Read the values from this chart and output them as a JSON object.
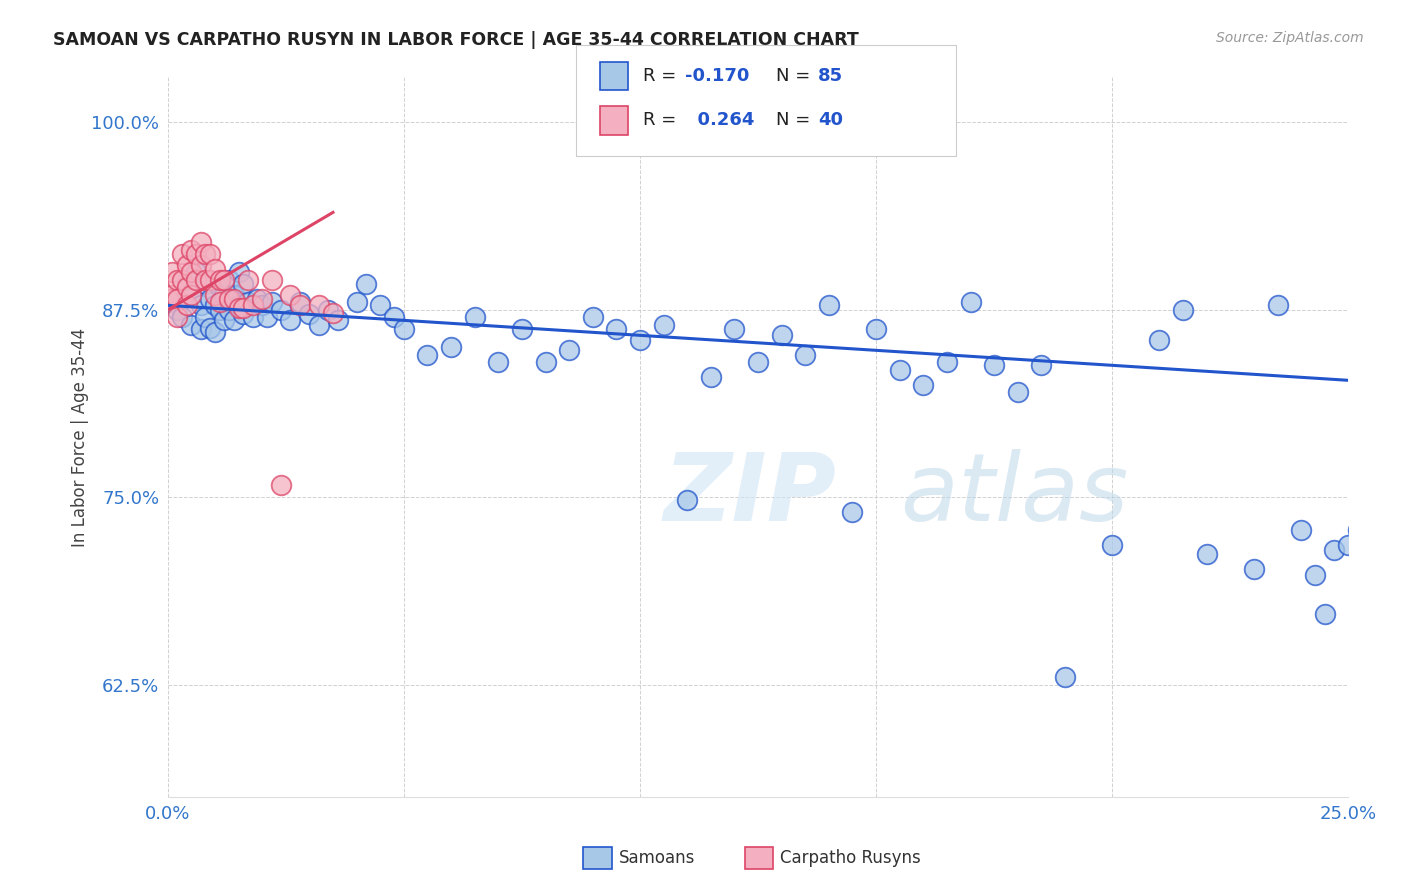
{
  "title": "SAMOAN VS CARPATHO RUSYN IN LABOR FORCE | AGE 35-44 CORRELATION CHART",
  "source": "Source: ZipAtlas.com",
  "ylabel": "In Labor Force | Age 35-44",
  "xlim": [
    0.0,
    0.25
  ],
  "ylim": [
    0.55,
    1.03
  ],
  "yticks": [
    0.625,
    0.75,
    0.875,
    1.0
  ],
  "yticklabels": [
    "62.5%",
    "75.0%",
    "87.5%",
    "100.0%"
  ],
  "xticks": [
    0.0,
    0.05,
    0.1,
    0.15,
    0.2,
    0.25
  ],
  "xticklabels": [
    "0.0%",
    "",
    "",
    "",
    "",
    "25.0%"
  ],
  "blue_R": -0.17,
  "blue_N": 85,
  "pink_R": 0.264,
  "pink_N": 40,
  "blue_color": "#a8c8e8",
  "pink_color": "#f4b0c0",
  "blue_line_color": "#2255cc",
  "pink_line_color": "#dd4466",
  "watermark_zip": "ZIP",
  "watermark_atlas": "atlas",
  "blue_scatter_x": [
    0.001,
    0.002,
    0.003,
    0.004,
    0.005,
    0.005,
    0.006,
    0.007,
    0.007,
    0.008,
    0.008,
    0.009,
    0.009,
    0.01,
    0.01,
    0.011,
    0.011,
    0.012,
    0.012,
    0.013,
    0.013,
    0.014,
    0.014,
    0.015,
    0.015,
    0.016,
    0.016,
    0.017,
    0.018,
    0.019,
    0.02,
    0.021,
    0.022,
    0.024,
    0.026,
    0.028,
    0.03,
    0.032,
    0.034,
    0.036,
    0.04,
    0.042,
    0.045,
    0.048,
    0.05,
    0.055,
    0.06,
    0.065,
    0.07,
    0.075,
    0.08,
    0.085,
    0.09,
    0.095,
    0.1,
    0.105,
    0.11,
    0.115,
    0.12,
    0.125,
    0.13,
    0.135,
    0.14,
    0.145,
    0.15,
    0.155,
    0.16,
    0.165,
    0.17,
    0.175,
    0.18,
    0.185,
    0.19,
    0.2,
    0.21,
    0.215,
    0.22,
    0.23,
    0.235,
    0.24,
    0.243,
    0.245,
    0.247,
    0.25,
    0.252
  ],
  "blue_scatter_y": [
    0.88,
    0.875,
    0.87,
    0.895,
    0.885,
    0.865,
    0.9,
    0.878,
    0.862,
    0.892,
    0.87,
    0.882,
    0.863,
    0.878,
    0.86,
    0.89,
    0.875,
    0.885,
    0.868,
    0.895,
    0.875,
    0.885,
    0.868,
    0.9,
    0.878,
    0.892,
    0.872,
    0.88,
    0.87,
    0.882,
    0.878,
    0.87,
    0.88,
    0.875,
    0.868,
    0.88,
    0.872,
    0.865,
    0.875,
    0.868,
    0.88,
    0.892,
    0.878,
    0.87,
    0.862,
    0.845,
    0.85,
    0.87,
    0.84,
    0.862,
    0.84,
    0.848,
    0.87,
    0.862,
    0.855,
    0.865,
    0.748,
    0.83,
    0.862,
    0.84,
    0.858,
    0.845,
    0.878,
    0.74,
    0.862,
    0.835,
    0.825,
    0.84,
    0.88,
    0.838,
    0.82,
    0.838,
    0.63,
    0.718,
    0.855,
    0.875,
    0.712,
    0.702,
    0.878,
    0.728,
    0.698,
    0.672,
    0.715,
    0.718,
    0.728
  ],
  "pink_scatter_x": [
    0.0,
    0.001,
    0.001,
    0.002,
    0.002,
    0.002,
    0.003,
    0.003,
    0.004,
    0.004,
    0.004,
    0.005,
    0.005,
    0.005,
    0.006,
    0.006,
    0.007,
    0.007,
    0.008,
    0.008,
    0.009,
    0.009,
    0.01,
    0.01,
    0.011,
    0.011,
    0.012,
    0.013,
    0.014,
    0.015,
    0.016,
    0.017,
    0.018,
    0.02,
    0.022,
    0.024,
    0.026,
    0.028,
    0.032,
    0.035
  ],
  "pink_scatter_y": [
    0.882,
    0.9,
    0.885,
    0.895,
    0.882,
    0.87,
    0.912,
    0.895,
    0.905,
    0.89,
    0.878,
    0.915,
    0.9,
    0.885,
    0.912,
    0.895,
    0.92,
    0.905,
    0.912,
    0.895,
    0.912,
    0.895,
    0.902,
    0.885,
    0.895,
    0.88,
    0.895,
    0.882,
    0.882,
    0.876,
    0.876,
    0.895,
    0.878,
    0.882,
    0.895,
    0.758,
    0.885,
    0.878,
    0.878,
    0.873
  ]
}
